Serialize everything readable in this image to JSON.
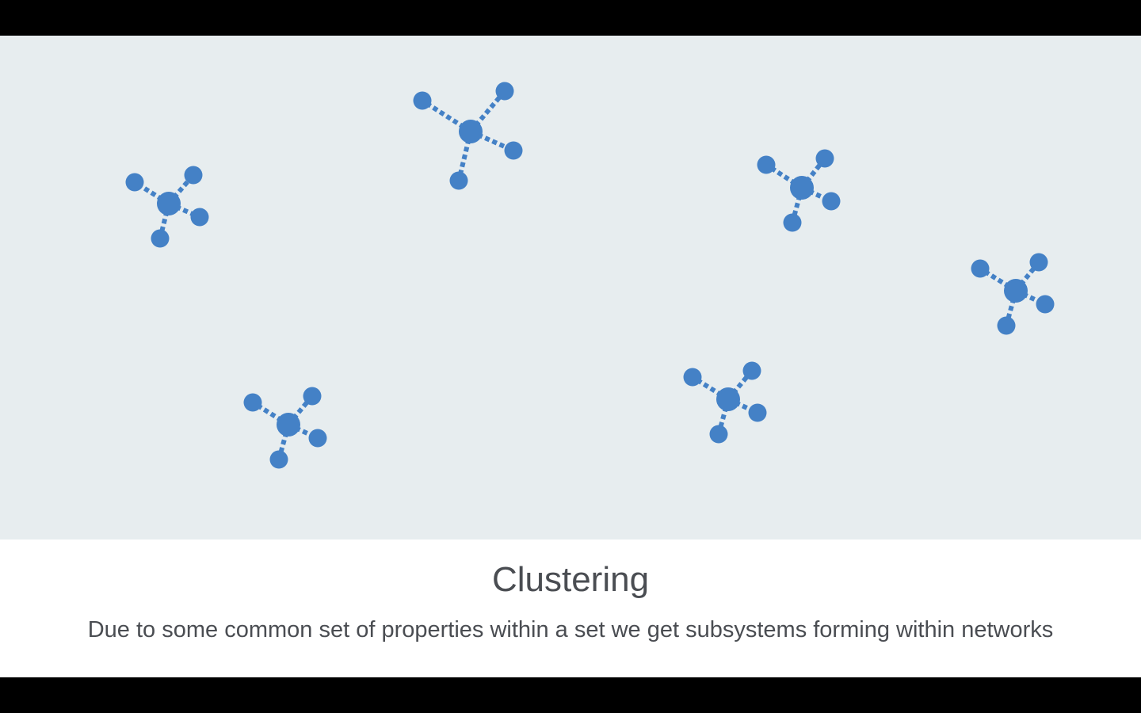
{
  "slide": {
    "title": "Clustering",
    "subtitle": "Due to some common set of properties within a set we get subsystems forming within networks"
  },
  "diagram": {
    "node_color": "#4481c6",
    "background_color": "#e7edef",
    "cluster_count": 6,
    "nodes_per_cluster": 5
  }
}
